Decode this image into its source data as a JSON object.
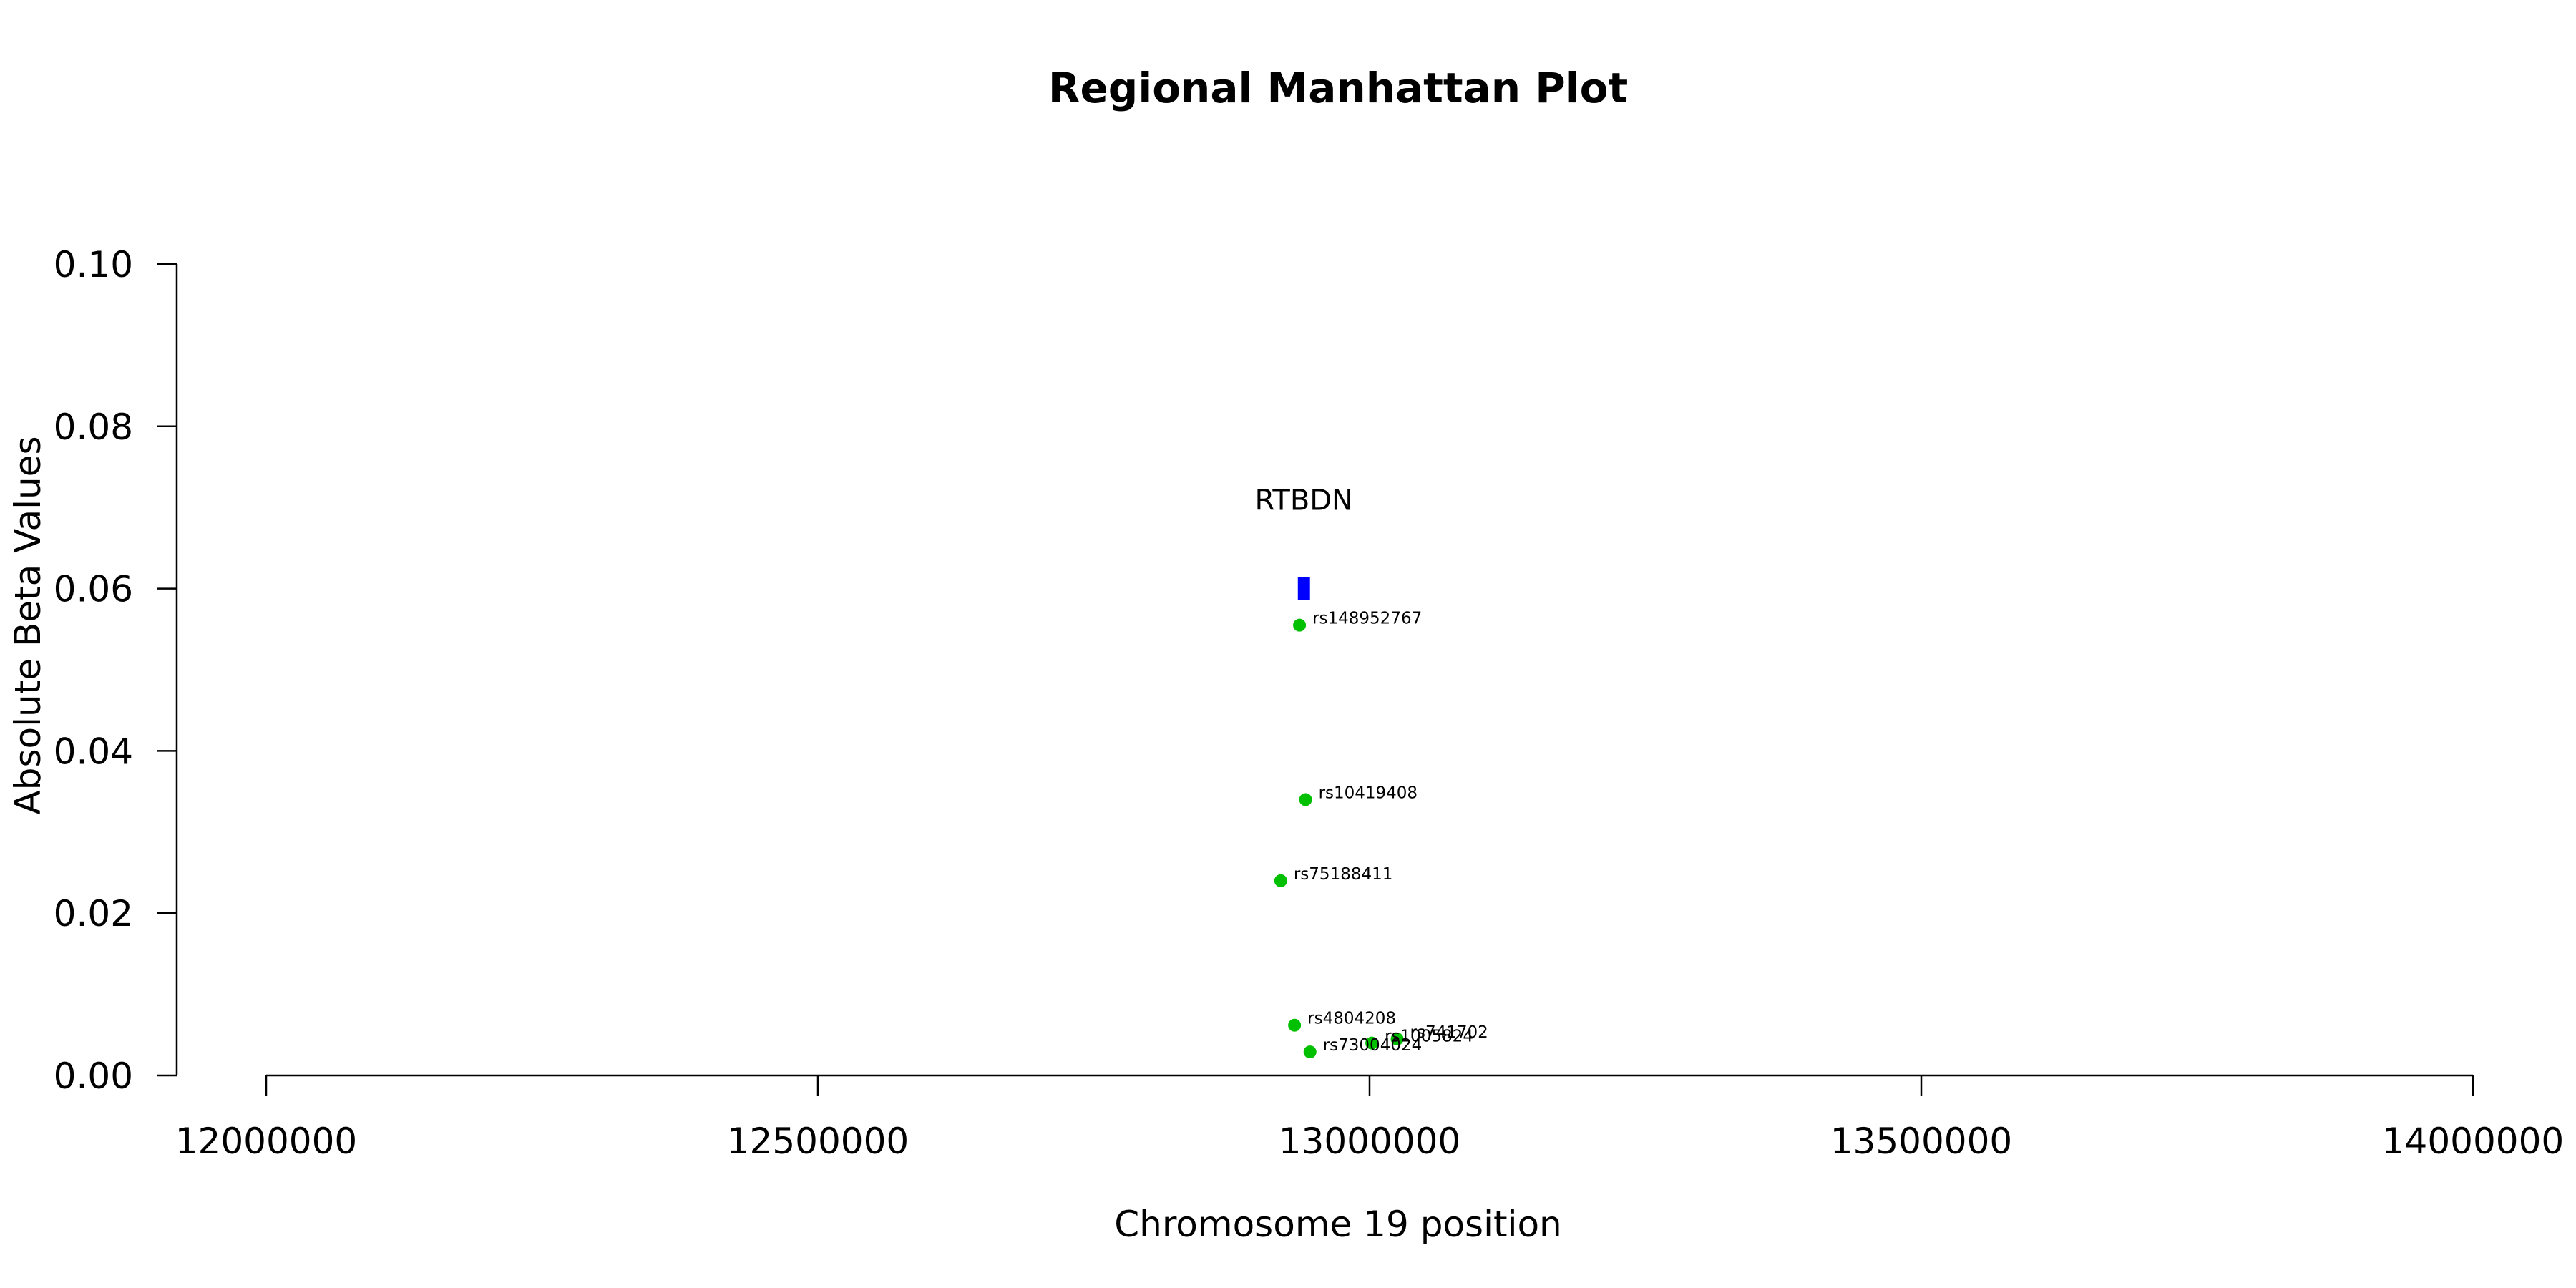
{
  "chart_data": {
    "type": "scatter",
    "title": "Regional Manhattan Plot",
    "xlabel": "Chromosome 19 position",
    "ylabel": "Absolute Beta Values",
    "xlim": [
      12000000,
      14000000
    ],
    "ylim": [
      0,
      0.1
    ],
    "x_ticks": [
      12000000,
      12500000,
      13000000,
      13500000,
      14000000
    ],
    "x_tick_labels": [
      "12000000",
      "12500000",
      "13000000",
      "13500000",
      "14000000"
    ],
    "y_ticks": [
      0,
      0.02,
      0.04,
      0.06,
      0.08,
      0.1
    ],
    "y_tick_labels": [
      "0.00",
      "0.02",
      "0.04",
      "0.06",
      "0.08",
      "0.10"
    ],
    "grid": false,
    "point_color": "#00c000",
    "points": [
      {
        "label": "rs148952767",
        "x": 12936500,
        "y": 0.0555
      },
      {
        "label": "rs10419408",
        "x": 12942000,
        "y": 0.034
      },
      {
        "label": "rs75188411",
        "x": 12919500,
        "y": 0.024
      },
      {
        "label": "rs4804208",
        "x": 12932000,
        "y": 0.0062
      },
      {
        "label": "rs741702",
        "x": 13025000,
        "y": 0.0045
      },
      {
        "label": "rs1005824",
        "x": 13002000,
        "y": 0.004
      },
      {
        "label": "rs73004024",
        "x": 12946000,
        "y": 0.0029
      }
    ],
    "gene": {
      "name": "RTBDN",
      "start": 12935000,
      "end": 12946000,
      "y": 0.06,
      "color": "#0000ff"
    }
  }
}
